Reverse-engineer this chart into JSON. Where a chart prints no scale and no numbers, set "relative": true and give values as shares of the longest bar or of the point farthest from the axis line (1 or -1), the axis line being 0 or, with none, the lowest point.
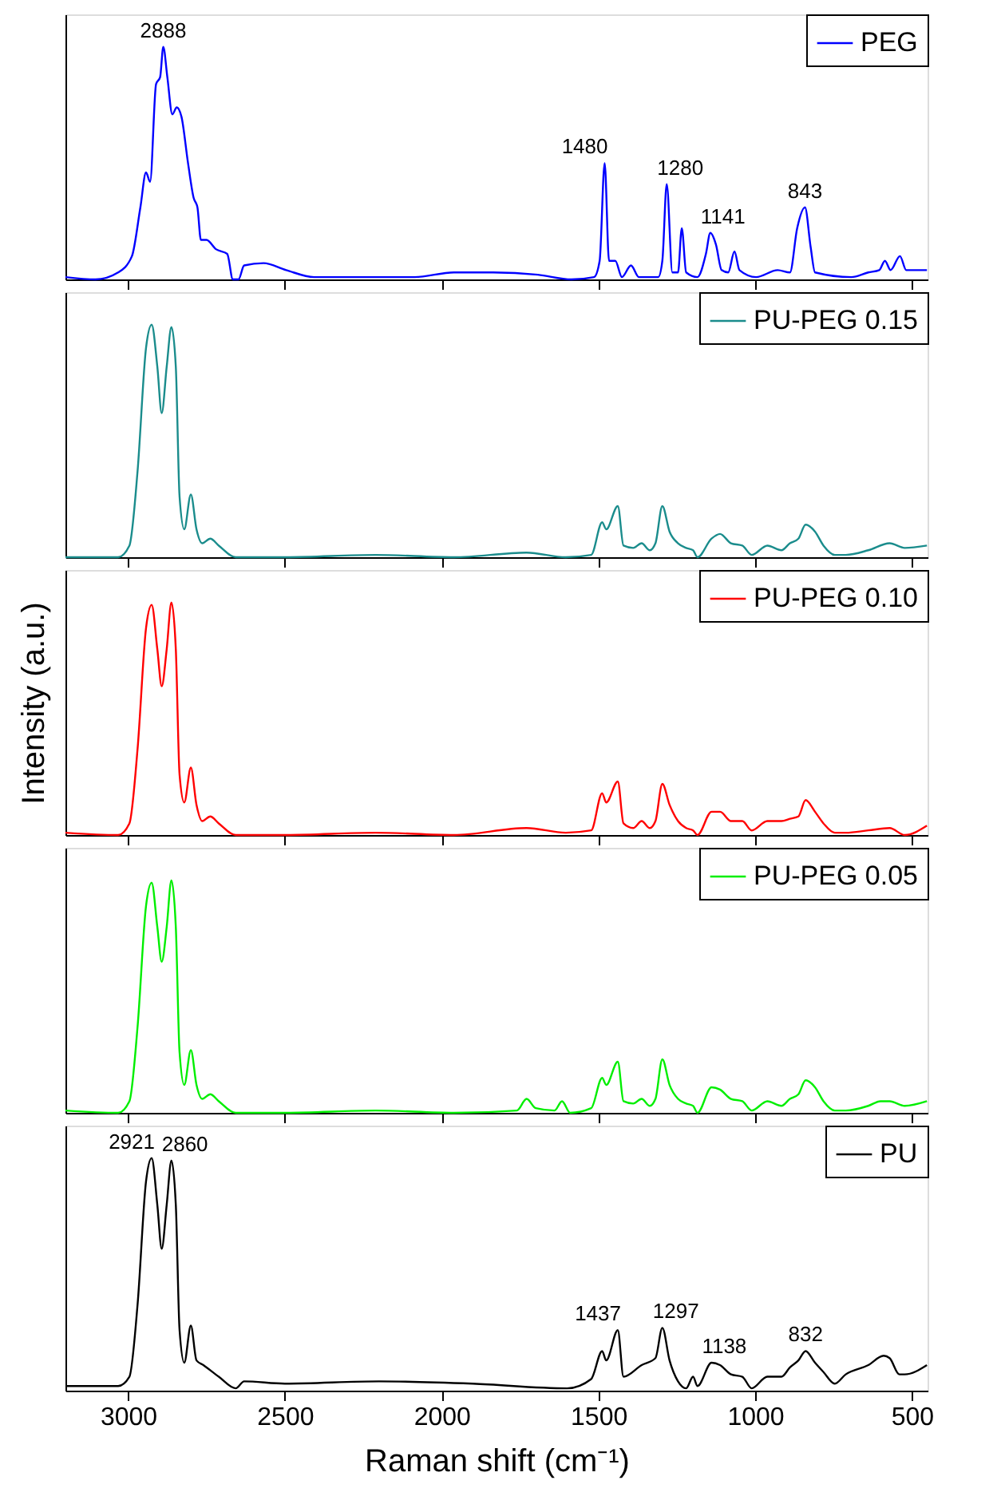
{
  "chart_data": [
    {
      "type": "line",
      "relative": true,
      "xlim": [
        3200,
        450
      ],
      "xticks": [
        3000,
        2500,
        2000,
        1500,
        1000,
        500
      ],
      "tick_labels": false,
      "legend": "top right",
      "series": [
        {
          "name": "PEG",
          "color": "#0000ff",
          "x": [
            3200,
            3104,
            3032,
            2988,
            2961,
            2943,
            2930,
            2911,
            2898,
            2888,
            2875,
            2859,
            2845,
            2830,
            2809,
            2791,
            2779,
            2768,
            2750,
            2720,
            2684,
            2666,
            2648,
            2630,
            2568,
            2496,
            2407,
            2228,
            2086,
            1961,
            1836,
            1693,
            1586,
            1514,
            1496,
            1480,
            1466,
            1446,
            1425,
            1396,
            1371,
            1309,
            1296,
            1282,
            1264,
            1246,
            1234,
            1220,
            1184,
            1157,
            1143,
            1125,
            1107,
            1086,
            1066,
            1050,
            997,
            928,
            889,
            866,
            841,
            823,
            809,
            693,
            639,
            604,
            586,
            568,
            538,
            518,
            452
          ],
          "values": [
            0.01,
            0,
            0.03,
            0.1,
            0.31,
            0.46,
            0.42,
            0.84,
            0.87,
            1.0,
            0.87,
            0.71,
            0.74,
            0.7,
            0.5,
            0.35,
            0.31,
            0.17,
            0.17,
            0.13,
            0.11,
            0,
            0,
            0.06,
            0.07,
            0.04,
            0.01,
            0.01,
            0.01,
            0.03,
            0.03,
            0.02,
            0,
            0.01,
            0.08,
            0.5,
            0.08,
            0.08,
            0.01,
            0.06,
            0.01,
            0.01,
            0.08,
            0.41,
            0.03,
            0.03,
            0.22,
            0.03,
            0.01,
            0.11,
            0.2,
            0.15,
            0.04,
            0.03,
            0.12,
            0.04,
            0.01,
            0.04,
            0.03,
            0.22,
            0.31,
            0.14,
            0.03,
            0.01,
            0.03,
            0.04,
            0.08,
            0.04,
            0.1,
            0.04,
            0.04
          ]
        }
      ],
      "annotations": [
        {
          "text": "2888",
          "x": 2888,
          "y": 1.0
        },
        {
          "text": "1480",
          "x": 1480,
          "y": 0.5
        },
        {
          "text": "1280",
          "x": 1282,
          "y": 0.41
        },
        {
          "text": "1141",
          "x": 1143,
          "y": 0.2
        },
        {
          "text": "843",
          "x": 841,
          "y": 0.31
        }
      ]
    },
    {
      "type": "line",
      "relative": true,
      "xlim": [
        3200,
        450
      ],
      "xticks": [
        3000,
        2500,
        2000,
        1500,
        1000,
        500
      ],
      "tick_labels": false,
      "legend": "top right",
      "series": [
        {
          "name": "PU-PEG 0.15",
          "color": "#1a8c8c",
          "x": [
            3200,
            3032,
            2996,
            2970,
            2943,
            2925,
            2907,
            2893,
            2877,
            2862,
            2848,
            2836,
            2821,
            2800,
            2782,
            2764,
            2738,
            2711,
            2657,
            2496,
            2211,
            1961,
            1729,
            1604,
            1523,
            1488,
            1475,
            1438,
            1420,
            1389,
            1362,
            1336,
            1318,
            1296,
            1273,
            1246,
            1220,
            1198,
            1184,
            1139,
            1112,
            1077,
            1041,
            1011,
            961,
            916,
            889,
            862,
            839,
            809,
            782,
            746,
            711,
            639,
            571,
            523,
            452
          ],
          "values": [
            0,
            0,
            0.05,
            0.37,
            0.9,
            1.0,
            0.82,
            0.62,
            0.82,
            0.99,
            0.82,
            0.26,
            0.12,
            0.27,
            0.12,
            0.06,
            0.08,
            0.05,
            0,
            0,
            0.01,
            0,
            0.02,
            0,
            0.01,
            0.15,
            0.12,
            0.22,
            0.05,
            0.04,
            0.06,
            0.03,
            0.06,
            0.22,
            0.11,
            0.06,
            0.04,
            0.03,
            0,
            0.08,
            0.1,
            0.06,
            0.05,
            0.01,
            0.05,
            0.03,
            0.06,
            0.08,
            0.14,
            0.11,
            0.05,
            0.01,
            0.01,
            0.03,
            0.06,
            0.04,
            0.05
          ]
        }
      ]
    },
    {
      "type": "line",
      "relative": true,
      "xlim": [
        3200,
        450
      ],
      "xticks": [
        3000,
        2500,
        2000,
        1500,
        1000,
        500
      ],
      "tick_labels": false,
      "legend": "top right",
      "ylabel": "Intensity (a.u.)",
      "series": [
        {
          "name": "PU-PEG 0.10",
          "color": "#ff0000",
          "x": [
            3200,
            3032,
            2996,
            2970,
            2943,
            2925,
            2907,
            2893,
            2877,
            2862,
            2848,
            2836,
            2821,
            2800,
            2782,
            2764,
            2738,
            2711,
            2657,
            2496,
            2211,
            1961,
            1729,
            1604,
            1523,
            1488,
            1475,
            1438,
            1420,
            1389,
            1362,
            1336,
            1318,
            1296,
            1273,
            1246,
            1220,
            1198,
            1184,
            1139,
            1112,
            1077,
            1041,
            1011,
            961,
            916,
            889,
            862,
            839,
            809,
            782,
            746,
            711,
            639,
            571,
            523,
            452
          ],
          "values": [
            0.01,
            0,
            0.05,
            0.37,
            0.89,
            0.99,
            0.8,
            0.64,
            0.8,
            1.0,
            0.8,
            0.26,
            0.14,
            0.29,
            0.13,
            0.06,
            0.08,
            0.05,
            0,
            0,
            0.01,
            0,
            0.03,
            0.01,
            0.02,
            0.18,
            0.14,
            0.23,
            0.05,
            0.03,
            0.06,
            0.03,
            0.06,
            0.22,
            0.13,
            0.06,
            0.03,
            0.02,
            0,
            0.1,
            0.1,
            0.06,
            0.06,
            0.02,
            0.06,
            0.06,
            0.07,
            0.08,
            0.15,
            0.1,
            0.05,
            0.01,
            0.01,
            0.02,
            0.03,
            0,
            0.04
          ]
        }
      ]
    },
    {
      "type": "line",
      "relative": true,
      "xlim": [
        3200,
        450
      ],
      "xticks": [
        3000,
        2500,
        2000,
        1500,
        1000,
        500
      ],
      "tick_labels": false,
      "legend": "top right",
      "series": [
        {
          "name": "PU-PEG 0.05",
          "color": "#00ee00",
          "x": [
            3200,
            3032,
            2996,
            2970,
            2943,
            2925,
            2907,
            2893,
            2877,
            2862,
            2848,
            2836,
            2821,
            2800,
            2782,
            2764,
            2738,
            2711,
            2657,
            2496,
            2211,
            1961,
            1760,
            1729,
            1700,
            1640,
            1616,
            1590,
            1523,
            1488,
            1475,
            1438,
            1420,
            1389,
            1362,
            1336,
            1318,
            1296,
            1273,
            1246,
            1220,
            1198,
            1184,
            1139,
            1112,
            1077,
            1041,
            1011,
            961,
            916,
            889,
            862,
            839,
            809,
            782,
            746,
            711,
            639,
            600,
            571,
            523,
            452
          ],
          "values": [
            0.01,
            0,
            0.05,
            0.37,
            0.89,
            0.99,
            0.8,
            0.65,
            0.8,
            1.0,
            0.8,
            0.26,
            0.12,
            0.27,
            0.12,
            0.06,
            0.08,
            0.05,
            0,
            0,
            0.01,
            0,
            0.01,
            0.06,
            0.02,
            0.01,
            0.05,
            0,
            0.02,
            0.15,
            0.12,
            0.22,
            0.05,
            0.04,
            0.06,
            0.03,
            0.06,
            0.23,
            0.12,
            0.06,
            0.04,
            0.03,
            0,
            0.11,
            0.1,
            0.06,
            0.05,
            0.01,
            0.05,
            0.03,
            0.06,
            0.08,
            0.14,
            0.11,
            0.05,
            0.01,
            0.01,
            0.03,
            0.05,
            0.05,
            0.03,
            0.05
          ]
        }
      ]
    },
    {
      "type": "line",
      "relative": true,
      "xlim": [
        3200,
        450
      ],
      "xticks": [
        3000,
        2500,
        2000,
        1500,
        1000,
        500
      ],
      "tick_labels": "x",
      "legend": "top right",
      "xlabel": "Raman shift (cm⁻¹)",
      "series": [
        {
          "name": "PU",
          "color": "#000000",
          "x": [
            3200,
            3032,
            2996,
            2970,
            2943,
            2925,
            2907,
            2893,
            2877,
            2862,
            2848,
            2836,
            2821,
            2800,
            2782,
            2760,
            2711,
            2657,
            2630,
            2500,
            2200,
            1900,
            1600,
            1523,
            1488,
            1475,
            1438,
            1420,
            1362,
            1318,
            1296,
            1273,
            1246,
            1220,
            1198,
            1184,
            1139,
            1112,
            1077,
            1041,
            1011,
            961,
            916,
            889,
            862,
            839,
            809,
            782,
            746,
            711,
            639,
            590,
            571,
            540,
            523,
            452
          ],
          "values": [
            0.02,
            0.02,
            0.06,
            0.37,
            0.9,
            1.0,
            0.8,
            0.61,
            0.8,
            0.99,
            0.8,
            0.26,
            0.12,
            0.28,
            0.13,
            0.11,
            0.06,
            0.01,
            0.04,
            0.03,
            0.04,
            0.03,
            0.01,
            0.05,
            0.17,
            0.13,
            0.26,
            0.06,
            0.11,
            0.14,
            0.27,
            0.13,
            0.04,
            0.01,
            0.06,
            0.02,
            0.12,
            0.11,
            0.07,
            0.06,
            0.01,
            0.06,
            0.06,
            0.1,
            0.13,
            0.17,
            0.12,
            0.08,
            0.03,
            0.07,
            0.11,
            0.15,
            0.14,
            0.07,
            0.07,
            0.11
          ]
        }
      ],
      "annotations": [
        {
          "text": "2921",
          "x": 2925,
          "y": 1.0
        },
        {
          "text": "2860",
          "x": 2862,
          "y": 0.99
        },
        {
          "text": "1437",
          "x": 1438,
          "y": 0.26
        },
        {
          "text": "1297",
          "x": 1296,
          "y": 0.27
        },
        {
          "text": "1138",
          "x": 1139,
          "y": 0.12
        },
        {
          "text": "832",
          "x": 839,
          "y": 0.17
        }
      ]
    }
  ]
}
